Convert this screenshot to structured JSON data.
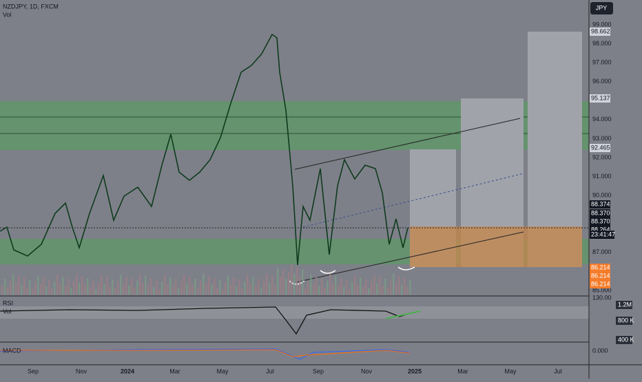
{
  "header": {
    "symbol": "NZDJPY, 1D, FXCM",
    "volume": "Vol",
    "currency": "JPY"
  },
  "price_axis": [
    "99.000",
    "98.000",
    "97.000",
    "96.000",
    "94.000",
    "93.000",
    "92.000",
    "91.000",
    "90.000",
    "87.000",
    "85.000"
  ],
  "price_tags": [
    {
      "text": "98.662",
      "style": "light"
    },
    {
      "text": "95.137",
      "style": "light"
    },
    {
      "text": "92.465",
      "style": "light"
    },
    {
      "text": "88.374",
      "style": "dark"
    },
    {
      "text": "88.370",
      "style": "dark"
    },
    {
      "text": "88.370",
      "style": "dark"
    },
    {
      "text": "88.264",
      "style": "dark"
    },
    {
      "text": "86.214",
      "style": "orange"
    },
    {
      "text": "86.214",
      "style": "orange"
    },
    {
      "text": "86.214",
      "style": "orange"
    }
  ],
  "countdown": "23:41:47",
  "panes": {
    "rsi": "RSI",
    "vol": "Vol",
    "macd": "MACD",
    "rsi_axis": "130.00",
    "vol_axis": [
      "1.2M",
      "800 K",
      "400 K"
    ],
    "macd_axis": "0.000"
  },
  "time_axis": [
    "Sep",
    "Nov",
    "2024",
    "Mar",
    "May",
    "Jul",
    "Sep",
    "Nov",
    "2025",
    "Mar",
    "May",
    "Jul"
  ]
}
